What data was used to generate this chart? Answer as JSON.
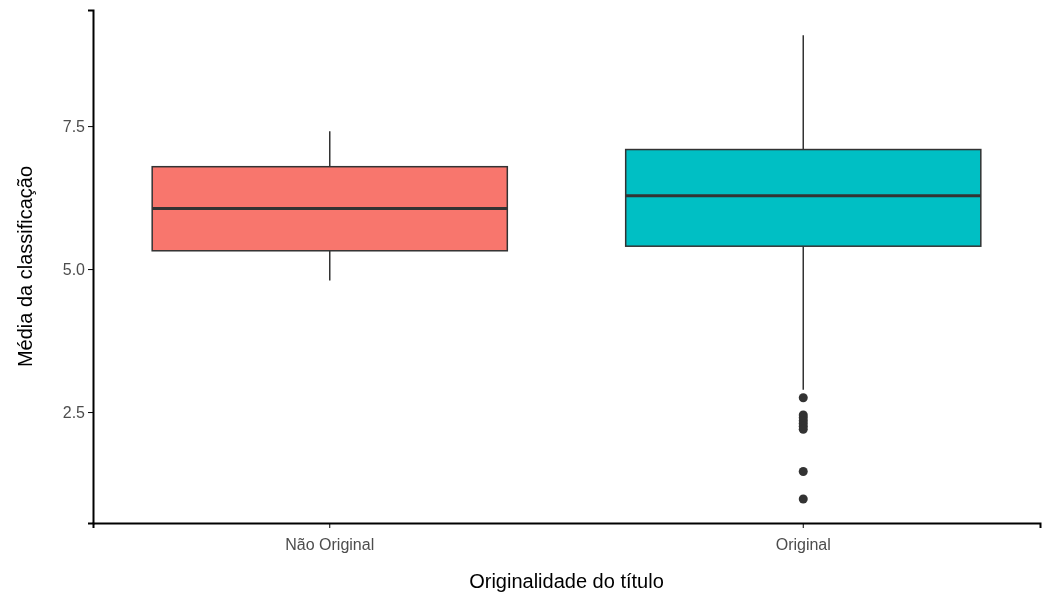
{
  "chart_data": {
    "type": "box",
    "xlabel": "Originalidade do título",
    "ylabel": "Média da classificação",
    "categories": [
      "Não Original",
      "Original"
    ],
    "colors": [
      "#f8766d",
      "#00bfc4"
    ],
    "boxes": [
      {
        "low": 4.8,
        "q1": 5.32,
        "median": 6.06,
        "q3": 6.79,
        "high": 7.41
      },
      {
        "low": 2.89,
        "q1": 5.4,
        "median": 6.28,
        "q3": 7.09,
        "high": 9.09,
        "outliers": [
          2.75,
          2.45,
          2.4,
          2.35,
          2.3,
          2.25,
          2.2,
          1.46,
          0.98
        ]
      }
    ],
    "ylim": [
      0.56,
      9.53
    ],
    "yticks": [
      {
        "value": 2.5,
        "label": "2.5"
      },
      {
        "value": 5,
        "label": "5.0"
      },
      {
        "value": 7.5,
        "label": "7.5"
      }
    ],
    "grid": false,
    "legend": false
  }
}
